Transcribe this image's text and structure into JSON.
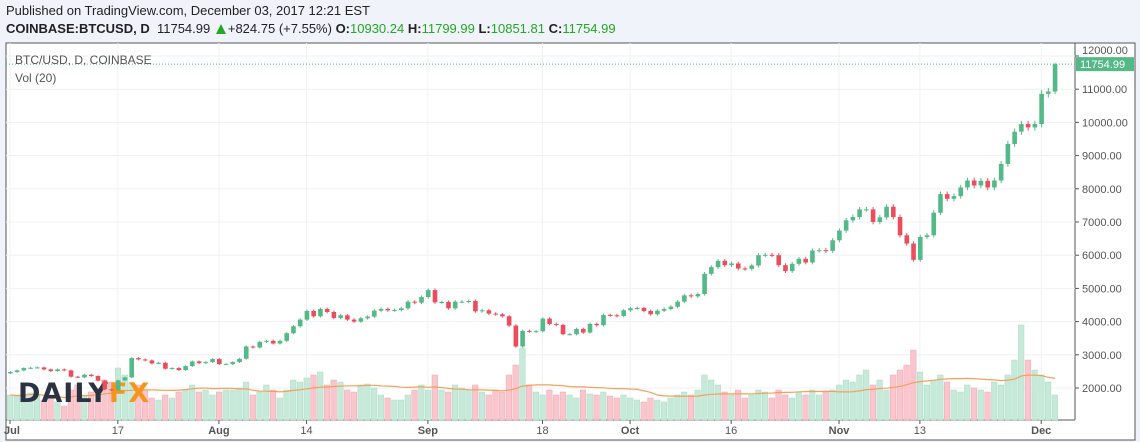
{
  "header": {
    "published": "Published on TradingView.com, December 03, 2017 12:21 EST",
    "symbol": "COINBASE:BTCUSD, D",
    "last": "11754.99",
    "change": "+824.75 (+7.55%)",
    "o_label": "O:",
    "o": "10930.24",
    "h_label": "H:",
    "h": "11799.99",
    "l_label": "L:",
    "l": "10851.81",
    "c_label": "C:",
    "c": "11754.99"
  },
  "pane": {
    "title": "BTC/USD, D, COINBASE",
    "volume_label": "Vol (20)"
  },
  "watermark": "DAILYFX",
  "colors": {
    "up": "#53b987",
    "down": "#eb4d5c",
    "vol_up": "#c6e9d9",
    "vol_down": "#f8c6cc",
    "vol_ma": "#f5a05a",
    "accent": "#53b987"
  },
  "chart_data": {
    "type": "candlestick",
    "start_date": "2017-07-01",
    "end_date": "2017-12-03",
    "ylim": [
      1100,
      12300
    ],
    "y_ticks": [
      "2000.00",
      "3000.00",
      "4000.00",
      "5000.00",
      "6000.00",
      "7000.00",
      "8000.00",
      "9000.00",
      "10000.00",
      "11000.00",
      "12000.00"
    ],
    "x_ticks": [
      "Jul",
      "17",
      "Aug",
      "14",
      "Sep",
      "18",
      "Oct",
      "16",
      "Nov",
      "13",
      "Dec"
    ],
    "last_price_label": "11754.99",
    "last_open": 10930.24,
    "last_high": 11799.99,
    "last_low": 10851.81,
    "grid": true,
    "close": [
      2480,
      2530,
      2600,
      2610,
      2620,
      2560,
      2510,
      2560,
      2530,
      2340,
      2320,
      2400,
      2360,
      2220,
      1960,
      1930,
      2230,
      2320,
      2900,
      2860,
      2830,
      2740,
      2760,
      2580,
      2600,
      2540,
      2660,
      2800,
      2750,
      2780,
      2870,
      2720,
      2720,
      2780,
      2880,
      3250,
      3220,
      3390,
      3420,
      3340,
      3420,
      3650,
      3860,
      4060,
      4320,
      4160,
      4380,
      4290,
      4110,
      4190,
      4060,
      4000,
      4100,
      4150,
      4330,
      4380,
      4340,
      4350,
      4400,
      4600,
      4570,
      4740,
      4950,
      4580,
      4590,
      4400,
      4600,
      4600,
      4620,
      4310,
      4340,
      4240,
      4220,
      4160,
      3880,
      3250,
      3720,
      3700,
      3710,
      4090,
      3930,
      3900,
      3620,
      3620,
      3780,
      3670,
      3930,
      3890,
      4200,
      4190,
      4170,
      4340,
      4400,
      4410,
      4320,
      4220,
      4330,
      4380,
      4450,
      4600,
      4790,
      4760,
      4830,
      5440,
      5640,
      5830,
      5700,
      5750,
      5600,
      5590,
      5690,
      6000,
      6010,
      6000,
      5700,
      5520,
      5740,
      5890,
      5780,
      6140,
      6150,
      6130,
      6450,
      6740,
      7050,
      7150,
      7380,
      7380,
      7000,
      7140,
      7460,
      7150,
      6600,
      6350,
      5860,
      6550,
      6600,
      7280,
      7840,
      7700,
      7780,
      8040,
      8250,
      8100,
      8240,
      8040,
      8250,
      8750,
      9350,
      9720,
      9950,
      9850,
      9950,
      10860,
      10930.24,
      11754.99
    ],
    "volume": [
      25,
      24,
      26,
      27,
      26,
      20,
      22,
      18,
      14,
      30,
      35,
      25,
      28,
      32,
      40,
      38,
      52,
      45,
      38,
      35,
      30,
      22,
      20,
      25,
      22,
      28,
      30,
      35,
      28,
      30,
      25,
      28,
      30,
      30,
      32,
      38,
      25,
      28,
      35,
      30,
      22,
      30,
      40,
      38,
      42,
      45,
      48,
      35,
      40,
      38,
      30,
      28,
      35,
      36,
      32,
      25,
      22,
      20,
      20,
      25,
      30,
      35,
      30,
      45,
      30,
      28,
      35,
      32,
      30,
      35,
      28,
      25,
      30,
      28,
      45,
      55,
      72,
      35,
      28,
      25,
      30,
      25,
      28,
      25,
      22,
      30,
      26,
      25,
      28,
      24,
      22,
      25,
      22,
      20,
      18,
      22,
      20,
      18,
      22,
      25,
      28,
      25,
      30,
      45,
      40,
      35,
      28,
      25,
      30,
      22,
      25,
      30,
      28,
      22,
      30,
      25,
      22,
      28,
      25,
      30,
      25,
      28,
      30,
      35,
      40,
      38,
      45,
      50,
      35,
      40,
      30,
      45,
      50,
      55,
      70,
      48,
      35,
      40,
      45,
      38,
      30,
      28,
      35,
      32,
      30,
      28,
      38,
      35,
      45,
      60,
      95,
      60,
      50,
      45,
      38,
      25
    ],
    "volume_ma_period": 20
  }
}
